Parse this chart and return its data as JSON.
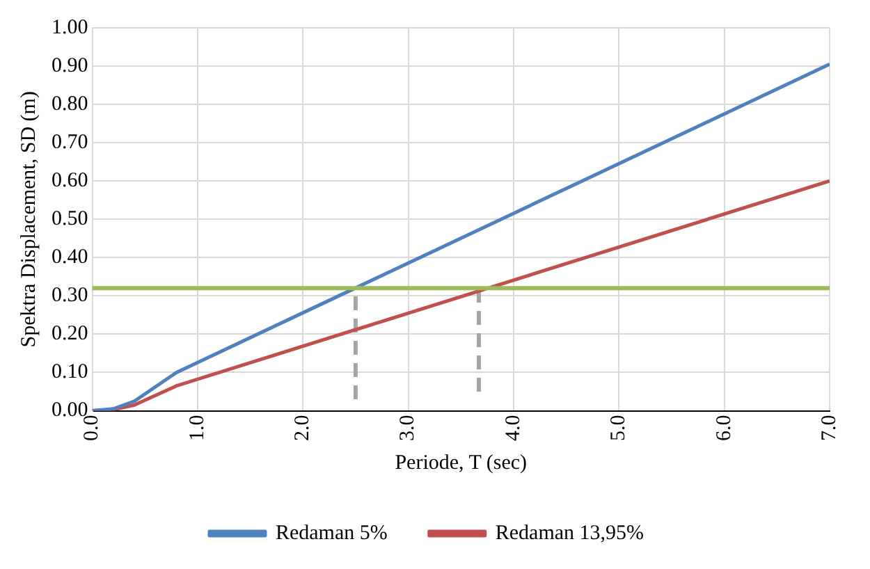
{
  "chart_data": {
    "type": "line",
    "xlabel": "Periode, T (sec)",
    "ylabel": "Spektra Displacement, SD (m)",
    "xlim": [
      0,
      7
    ],
    "xticks": [
      {
        "value": 0,
        "label": "0.0"
      },
      {
        "value": 1,
        "label": "1.0"
      },
      {
        "value": 2,
        "label": "2.0"
      },
      {
        "value": 3,
        "label": "3.0"
      },
      {
        "value": 4,
        "label": "4.0"
      },
      {
        "value": 5,
        "label": "5.0"
      },
      {
        "value": 6,
        "label": "6.0"
      },
      {
        "value": 7,
        "label": "7.0"
      }
    ],
    "ylim": [
      0,
      1
    ],
    "yticks": [
      {
        "value": 0,
        "label": "0.00"
      },
      {
        "value": 0.1,
        "label": "0.10"
      },
      {
        "value": 0.2,
        "label": "0.20"
      },
      {
        "value": 0.3,
        "label": "0.30"
      },
      {
        "value": 0.4,
        "label": "0.40"
      },
      {
        "value": 0.5,
        "label": "0.50"
      },
      {
        "value": 0.6,
        "label": "0.60"
      },
      {
        "value": 0.7,
        "label": "0.70"
      },
      {
        "value": 0.8,
        "label": "0.80"
      },
      {
        "value": 0.9,
        "label": "0.90"
      },
      {
        "value": 1,
        "label": "1.00"
      }
    ],
    "grid": true,
    "legend": "bottom",
    "marker": "none",
    "series": [
      {
        "name": "Redaman 5%",
        "color": "#4f81bd",
        "x": [
          0,
          0.2,
          0.4,
          0.8,
          7
        ],
        "values": [
          0,
          0.005,
          0.025,
          0.1,
          0.905
        ]
      },
      {
        "name": "Redaman 13,95%",
        "color": "#c0504d",
        "x": [
          0,
          0.2,
          0.4,
          0.8,
          7
        ],
        "values": [
          0,
          0.003,
          0.015,
          0.065,
          0.6
        ]
      },
      {
        "color": "#a5a5a5",
        "line_style": "dashed",
        "x": [
          2.5,
          2.5
        ],
        "values": [
          0.03,
          0.32
        ]
      },
      {
        "color": "#a5a5a5",
        "line_style": "dashed",
        "x": [
          3.67,
          3.67
        ],
        "values": [
          0.05,
          0.32
        ]
      }
    ],
    "ref_lines": [
      {
        "axis": "y",
        "value": 0.32,
        "color": "#9bbb59"
      }
    ]
  }
}
